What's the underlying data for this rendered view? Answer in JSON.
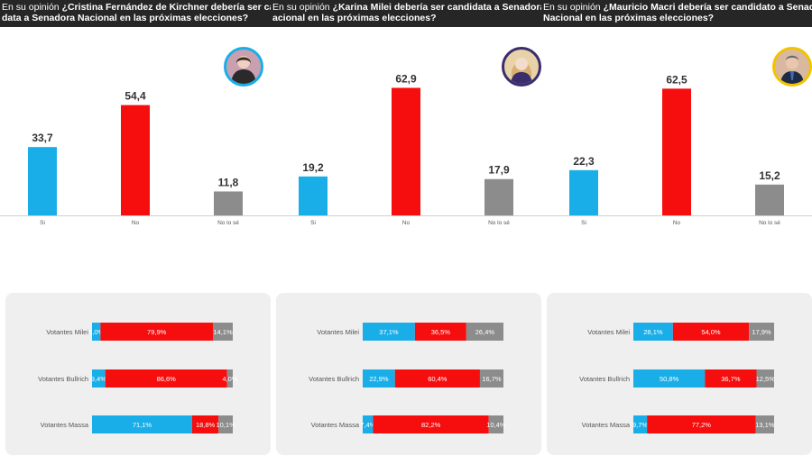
{
  "colors": {
    "si": "#1aaee9",
    "no": "#f60d0d",
    "nose": "#8c8c8c",
    "header_bg": "#262626",
    "box_bg": "#efefef"
  },
  "panels": [
    {
      "title_prefix": "En su opinión ",
      "title_line1": "¿Cristina Fernández de Kirchner debería ser candi",
      "title_line2": "data a Senadora Nacional en las próximas elecciones?",
      "avatar_border": "#1aaee9",
      "avatar_bg": "#c9a0b0"
    },
    {
      "title_prefix": "En su opinión ",
      "title_line1": "¿Karina Milei debería ser candidata a Senadora N",
      "title_line2": "acional en las próximas elecciones?",
      "avatar_border": "#3a2d6e",
      "avatar_bg": "#e8d2a8"
    },
    {
      "title_prefix": "En su opinión ",
      "title_line1": "¿Mauricio Macri debería ser candidato a Senador",
      "title_line2": "Nacional en las próximas elecciones?",
      "avatar_border": "#f2c300",
      "avatar_bg": "#d9b8a0"
    }
  ],
  "chart_data": [
    {
      "type": "bar",
      "categories": [
        "Si",
        "No",
        "No lo sé"
      ],
      "values": [
        33.7,
        54.4,
        11.8
      ],
      "value_labels": [
        "33,7",
        "54,4",
        "11,8"
      ],
      "ylim": [
        0,
        70
      ]
    },
    {
      "type": "bar",
      "categories": [
        "Si",
        "No",
        "No lo sé"
      ],
      "values": [
        19.2,
        62.9,
        17.9
      ],
      "value_labels": [
        "19,2",
        "62,9",
        "17,9"
      ],
      "ylim": [
        0,
        70
      ]
    },
    {
      "type": "bar",
      "categories": [
        "Si",
        "No",
        "No lo sé"
      ],
      "values": [
        22.3,
        62.5,
        15.2
      ],
      "value_labels": [
        "22,3",
        "62,5",
        "15,2"
      ],
      "ylim": [
        0,
        70
      ]
    },
    {
      "type": "bar",
      "stacked": true,
      "orientation": "horizontal",
      "categories": [
        "Votantes Milei",
        "Votantes Bullrich",
        "Votantes Massa"
      ],
      "series": [
        {
          "values": [
            6.0,
            9.4,
            71.1
          ],
          "labels": [
            "6,0%",
            "9,4%",
            "71,1%"
          ]
        },
        {
          "values": [
            79.9,
            86.6,
            18.8
          ],
          "labels": [
            "79,9%",
            "86,6%",
            "18,8%"
          ]
        },
        {
          "values": [
            14.1,
            4.0,
            10.1
          ],
          "labels": [
            "14,1%",
            "4,0%",
            "10,1%"
          ]
        }
      ]
    },
    {
      "type": "bar",
      "stacked": true,
      "orientation": "horizontal",
      "categories": [
        "Votantes Milei",
        "Votantes Bullrich",
        "Votantes Massa"
      ],
      "series": [
        {
          "values": [
            37.1,
            22.9,
            7.4
          ],
          "labels": [
            "37,1%",
            "22,9%",
            "7,4%"
          ]
        },
        {
          "values": [
            36.5,
            60.4,
            82.2
          ],
          "labels": [
            "36,5%",
            "60,4%",
            "82,2%"
          ]
        },
        {
          "values": [
            26.4,
            16.7,
            10.4
          ],
          "labels": [
            "26,4%",
            "16,7%",
            "10,4%"
          ]
        }
      ]
    },
    {
      "type": "bar",
      "stacked": true,
      "orientation": "horizontal",
      "categories": [
        "Votantes Milei",
        "Votantes Bullrich",
        "Votantes Massa"
      ],
      "series": [
        {
          "values": [
            28.1,
            50.8,
            9.7
          ],
          "labels": [
            "28,1%",
            "50,8%",
            "9,7%"
          ]
        },
        {
          "values": [
            54.0,
            36.7,
            77.2
          ],
          "labels": [
            "54,0%",
            "36,7%",
            "77,2%"
          ]
        },
        {
          "values": [
            17.9,
            12.5,
            13.1
          ],
          "labels": [
            "17,9%",
            "12,5%",
            "13,1%"
          ]
        }
      ]
    }
  ]
}
